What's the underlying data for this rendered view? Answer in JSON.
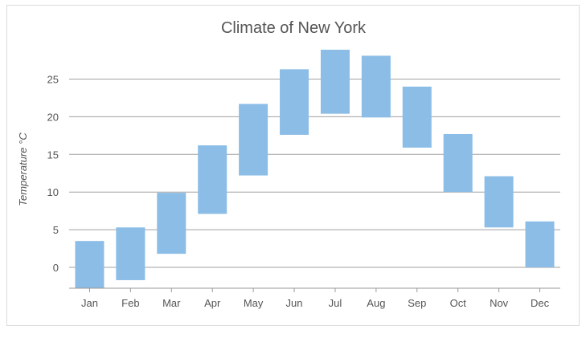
{
  "chart_data": {
    "type": "bar",
    "subtype": "range-column",
    "title": "Climate of New York",
    "xlabel": "",
    "ylabel": "Temperature °C",
    "categories": [
      "Jan",
      "Feb",
      "Mar",
      "Apr",
      "May",
      "Jun",
      "Jul",
      "Aug",
      "Sep",
      "Oct",
      "Nov",
      "Dec"
    ],
    "series": [
      {
        "low": [
          -2.8,
          -1.7,
          1.8,
          7.1,
          12.2,
          17.6,
          20.4,
          19.9,
          15.9,
          10.0,
          5.3,
          0.0
        ],
        "high": [
          3.5,
          5.3,
          9.9,
          16.2,
          21.7,
          26.3,
          28.9,
          28.1,
          24.0,
          17.7,
          12.1,
          6.1
        ]
      }
    ],
    "yticks": [
      0,
      5,
      10,
      15,
      20,
      25
    ],
    "ylim": [
      -2.8,
      29.5
    ],
    "grid": true,
    "legend": "none",
    "colors": {
      "bar": "#8bbde6",
      "grid": "#a0a0a0",
      "axis": "#999999"
    }
  }
}
